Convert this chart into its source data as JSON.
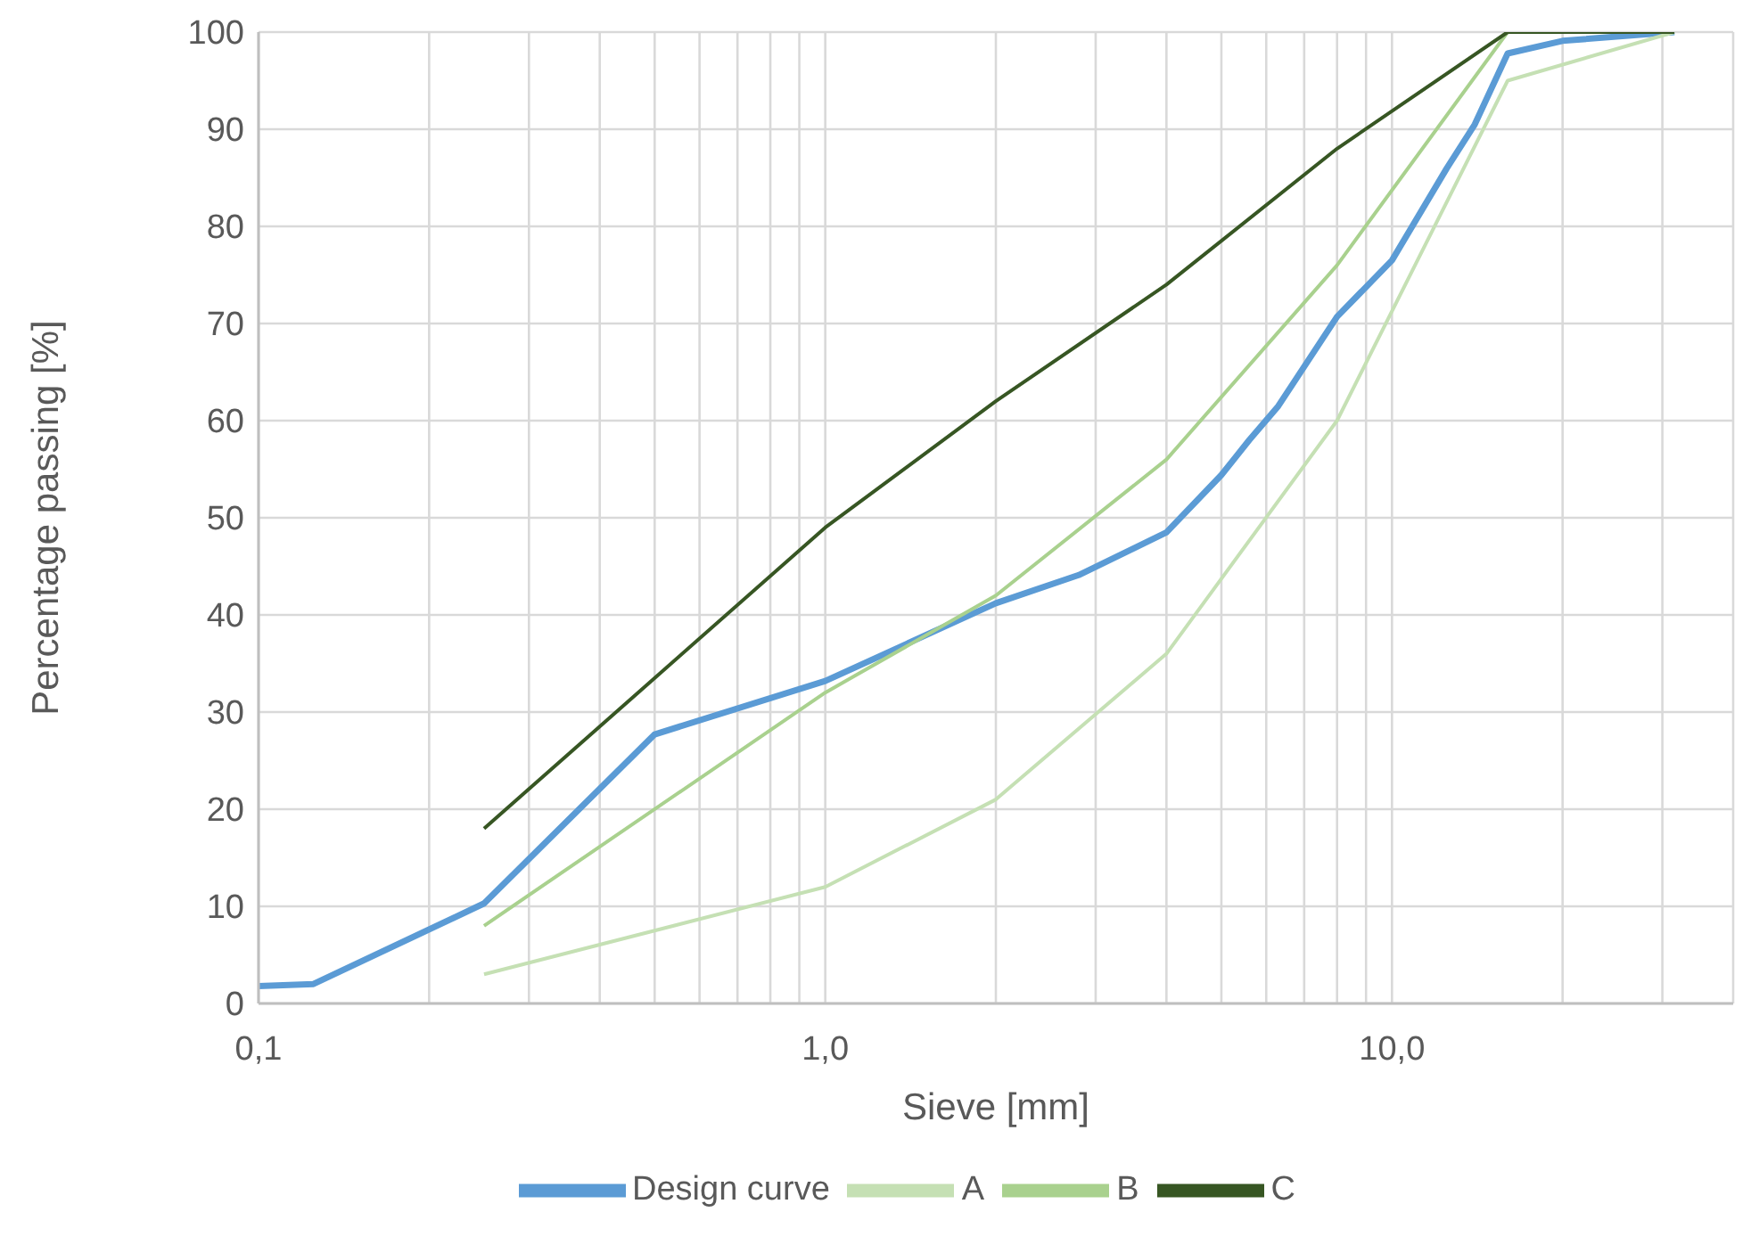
{
  "chart_data": {
    "type": "line",
    "xlabel": "Sieve [mm]",
    "ylabel": "Percentage passing [%]",
    "log": "x",
    "grid": true,
    "legend": "bottom",
    "marker": "none",
    "line_style": "solid",
    "xlim": [
      0.1,
      40
    ],
    "ylim": [
      0,
      100
    ],
    "xticks": [
      {
        "value": 0.1,
        "label": "0,1"
      },
      {
        "value": 0.2,
        "label": null
      },
      {
        "value": 0.3,
        "label": null
      },
      {
        "value": 0.4,
        "label": null
      },
      {
        "value": 0.5,
        "label": null
      },
      {
        "value": 0.6,
        "label": null
      },
      {
        "value": 0.7,
        "label": null
      },
      {
        "value": 0.8,
        "label": null
      },
      {
        "value": 0.9,
        "label": null
      },
      {
        "value": 1,
        "label": "1,0"
      },
      {
        "value": 2,
        "label": null
      },
      {
        "value": 3,
        "label": null
      },
      {
        "value": 4,
        "label": null
      },
      {
        "value": 5,
        "label": null
      },
      {
        "value": 6,
        "label": null
      },
      {
        "value": 7,
        "label": null
      },
      {
        "value": 8,
        "label": null
      },
      {
        "value": 9,
        "label": null
      },
      {
        "value": 10,
        "label": "10,0"
      },
      {
        "value": 20,
        "label": null
      },
      {
        "value": 30,
        "label": null
      }
    ],
    "yticks": [
      0,
      10,
      20,
      30,
      40,
      50,
      60,
      70,
      80,
      90,
      100
    ],
    "series": [
      {
        "name": "Design curve",
        "color": "#5b9bd5",
        "x": [
          0.1,
          0.125,
          0.25,
          0.5,
          1,
          2,
          2.8,
          4,
          5,
          5.6,
          6.3,
          8,
          10,
          12.5,
          14,
          16,
          20,
          31.5
        ],
        "values": [
          1.8,
          2.0,
          10.3,
          27.7,
          33.2,
          41.2,
          44.1,
          48.5,
          54.4,
          58,
          61.5,
          70.7,
          76.5,
          86,
          90.5,
          97.8,
          99.1,
          100
        ]
      },
      {
        "name": "A",
        "color": "#c5e0b4",
        "x": [
          0.25,
          1,
          2,
          4,
          8,
          16,
          31.5
        ],
        "values": [
          3,
          12,
          21,
          36,
          60,
          95,
          100
        ]
      },
      {
        "name": "B",
        "color": "#a9d18e",
        "x": [
          0.25,
          1,
          2,
          4,
          8,
          16,
          31.5
        ],
        "values": [
          8,
          32,
          42,
          56,
          76,
          100,
          100
        ]
      },
      {
        "name": "C",
        "color": "#375623",
        "x": [
          0.25,
          1,
          2,
          4,
          8,
          16,
          31.5
        ],
        "values": [
          18,
          49,
          62,
          74,
          88,
          100,
          100
        ]
      }
    ]
  }
}
